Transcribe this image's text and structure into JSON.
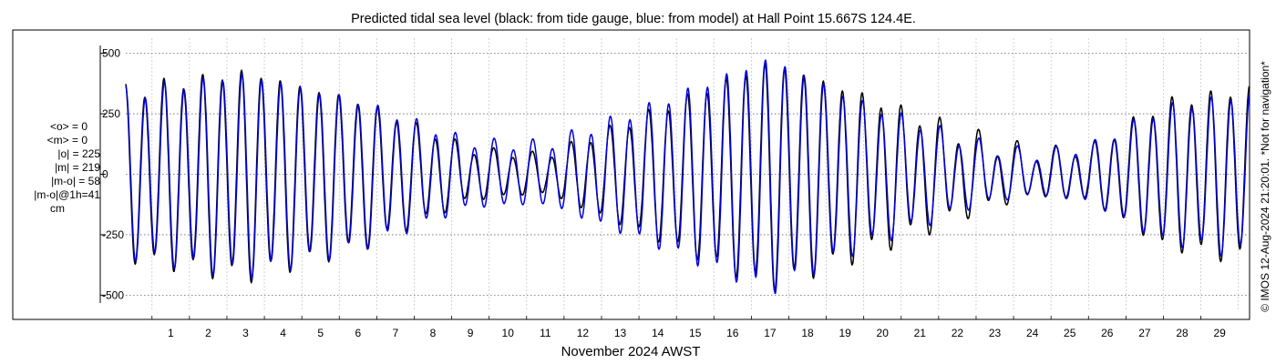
{
  "chart_data": {
    "type": "line",
    "title": "Predicted tidal sea level (black: from tide gauge, blue: from model) at Hall Point 15.667S 124.4E.",
    "xlabel": "November 2024 AWST",
    "ylabel": "",
    "xlim": [
      0.3,
      30.3
    ],
    "ylim": [
      -525,
      525
    ],
    "x_ticks": [
      "1",
      "2",
      "3",
      "4",
      "5",
      "6",
      "7",
      "8",
      "9",
      "10",
      "11",
      "12",
      "13",
      "14",
      "15",
      "16",
      "17",
      "18",
      "19",
      "20",
      "21",
      "22",
      "23",
      "24",
      "25",
      "26",
      "27",
      "28",
      "29"
    ],
    "y_ticks": [
      {
        "value": 500,
        "label": "500"
      },
      {
        "value": 250,
        "label": "250"
      },
      {
        "value": 0,
        "label": "0"
      },
      {
        "value": -250,
        "label": "-250"
      },
      {
        "value": -500,
        "label": "-500"
      }
    ],
    "grid": true,
    "series": [
      {
        "name": "tide gauge",
        "color": "#000000",
        "envelope": {
          "days": [
            0.3,
            3.5,
            6.5,
            9.5,
            11.5,
            14.0,
            17.5,
            20.0,
            23.0,
            24.5,
            26.0,
            28.0,
            30.3
          ],
          "semidiurnal_amplitude": [
            340,
            420,
            300,
            100,
            75,
            230,
            460,
            320,
            140,
            85,
            100,
            290,
            350
          ],
          "diurnal_amplitude": [
            45,
            35,
            30,
            20,
            15,
            25,
            30,
            40,
            55,
            35,
            20,
            30,
            40
          ]
        }
      },
      {
        "name": "model",
        "color": "#0000dd",
        "envelope": {
          "days": [
            0.3,
            3.5,
            6.5,
            9.5,
            11.5,
            14.0,
            17.5,
            20.0,
            23.0,
            24.5,
            26.0,
            28.0,
            30.3
          ],
          "semidiurnal_amplitude": [
            330,
            410,
            300,
            130,
            120,
            260,
            475,
            290,
            120,
            80,
            110,
            270,
            330
          ],
          "diurnal_amplitude": [
            40,
            30,
            28,
            22,
            25,
            25,
            28,
            30,
            35,
            25,
            20,
            25,
            35
          ]
        }
      }
    ],
    "stats": [
      "<o> = 0",
      "<m> = 0",
      "|o| = 225",
      "|m| = 219",
      "|m-o| = 58",
      "|m-o|@1h=41",
      "cm"
    ],
    "footer": "© IMOS 12-Aug-2024 21:20:01. *Not for navigation*"
  }
}
